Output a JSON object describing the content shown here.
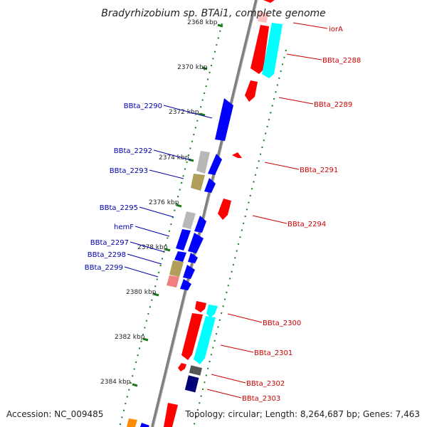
{
  "title": "Bradyrhizobium sp. BTAi1, complete genome",
  "accession": "Accession: NC_009485",
  "topology": "Topology: circular; Length: 8,264,687 bp; Genes: 7,463",
  "colors": {
    "reverse_label": "#cc0000",
    "forward_label": "#0000aa",
    "ticks": "#1a7a1a",
    "backbone": "#808080"
  },
  "ruler": {
    "ticks": [
      {
        "label": "2368 kbp",
        "kbp": 2368
      },
      {
        "label": "2370 kbp",
        "kbp": 2370
      },
      {
        "label": "2372 kbp",
        "kbp": 2372
      },
      {
        "label": "2374 kbp",
        "kbp": 2374
      },
      {
        "label": "2376 kbp",
        "kbp": 2376
      },
      {
        "label": "2378 kbp",
        "kbp": 2378
      },
      {
        "label": "2380 kbp",
        "kbp": 2380
      },
      {
        "label": "2382 kbp",
        "kbp": 2382
      },
      {
        "label": "2384 kbp",
        "kbp": 2384
      }
    ]
  },
  "genes_reverse": [
    {
      "label": "iorA",
      "color": "#ff0000"
    },
    {
      "label": "BBta_2288",
      "color": "#ff0000"
    },
    {
      "label": "BBta_2289",
      "color": "#ff0000"
    },
    {
      "label": "BBta_2291",
      "color": "#ff0000"
    },
    {
      "label": "BBta_2294",
      "color": "#ff0000"
    },
    {
      "label": "BBta_2300",
      "color": "#ff0000"
    },
    {
      "label": "BBta_2301",
      "color": "#ff0000"
    },
    {
      "label": "BBta_2302",
      "color": "#ff0000"
    },
    {
      "label": "BBta_2303",
      "color": "#ff0000"
    }
  ],
  "genes_forward": [
    {
      "label": "BBta_2290",
      "color": "#0000ff"
    },
    {
      "label": "BBta_2292",
      "color": "#0000ff"
    },
    {
      "label": "BBta_2293",
      "color": "#0000ff"
    },
    {
      "label": "BBta_2295",
      "color": "#0000ff"
    },
    {
      "label": "hemF",
      "color": "#0000ff"
    },
    {
      "label": "BBta_2297",
      "color": "#0000ff"
    },
    {
      "label": "BBta_2298",
      "color": "#0000ff"
    },
    {
      "label": "BBta_2299",
      "color": "#0000ff"
    }
  ]
}
